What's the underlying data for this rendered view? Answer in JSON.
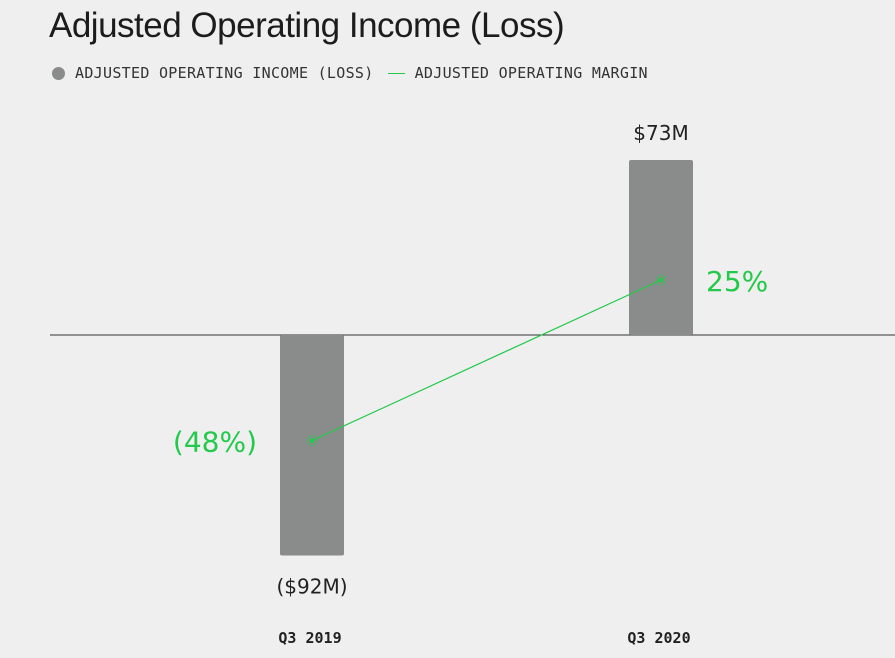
{
  "chart_data": {
    "type": "bar",
    "title": "Adjusted Operating Income (Loss)",
    "categories": [
      "Q3 2019",
      "Q3 2020"
    ],
    "series": [
      {
        "name": "ADJUSTED OPERATING INCOME (LOSS)",
        "type": "bar",
        "values": [
          -92,
          73
        ],
        "value_labels": [
          "($92M)",
          "$73M"
        ],
        "color": "#8a8c8b"
      },
      {
        "name": "ADJUSTED OPERATING MARGIN",
        "type": "line",
        "values": [
          -48,
          25
        ],
        "value_labels": [
          "(48%)",
          "25%"
        ],
        "color": "#22c94a"
      }
    ],
    "legend": "top-left",
    "grid": false
  }
}
